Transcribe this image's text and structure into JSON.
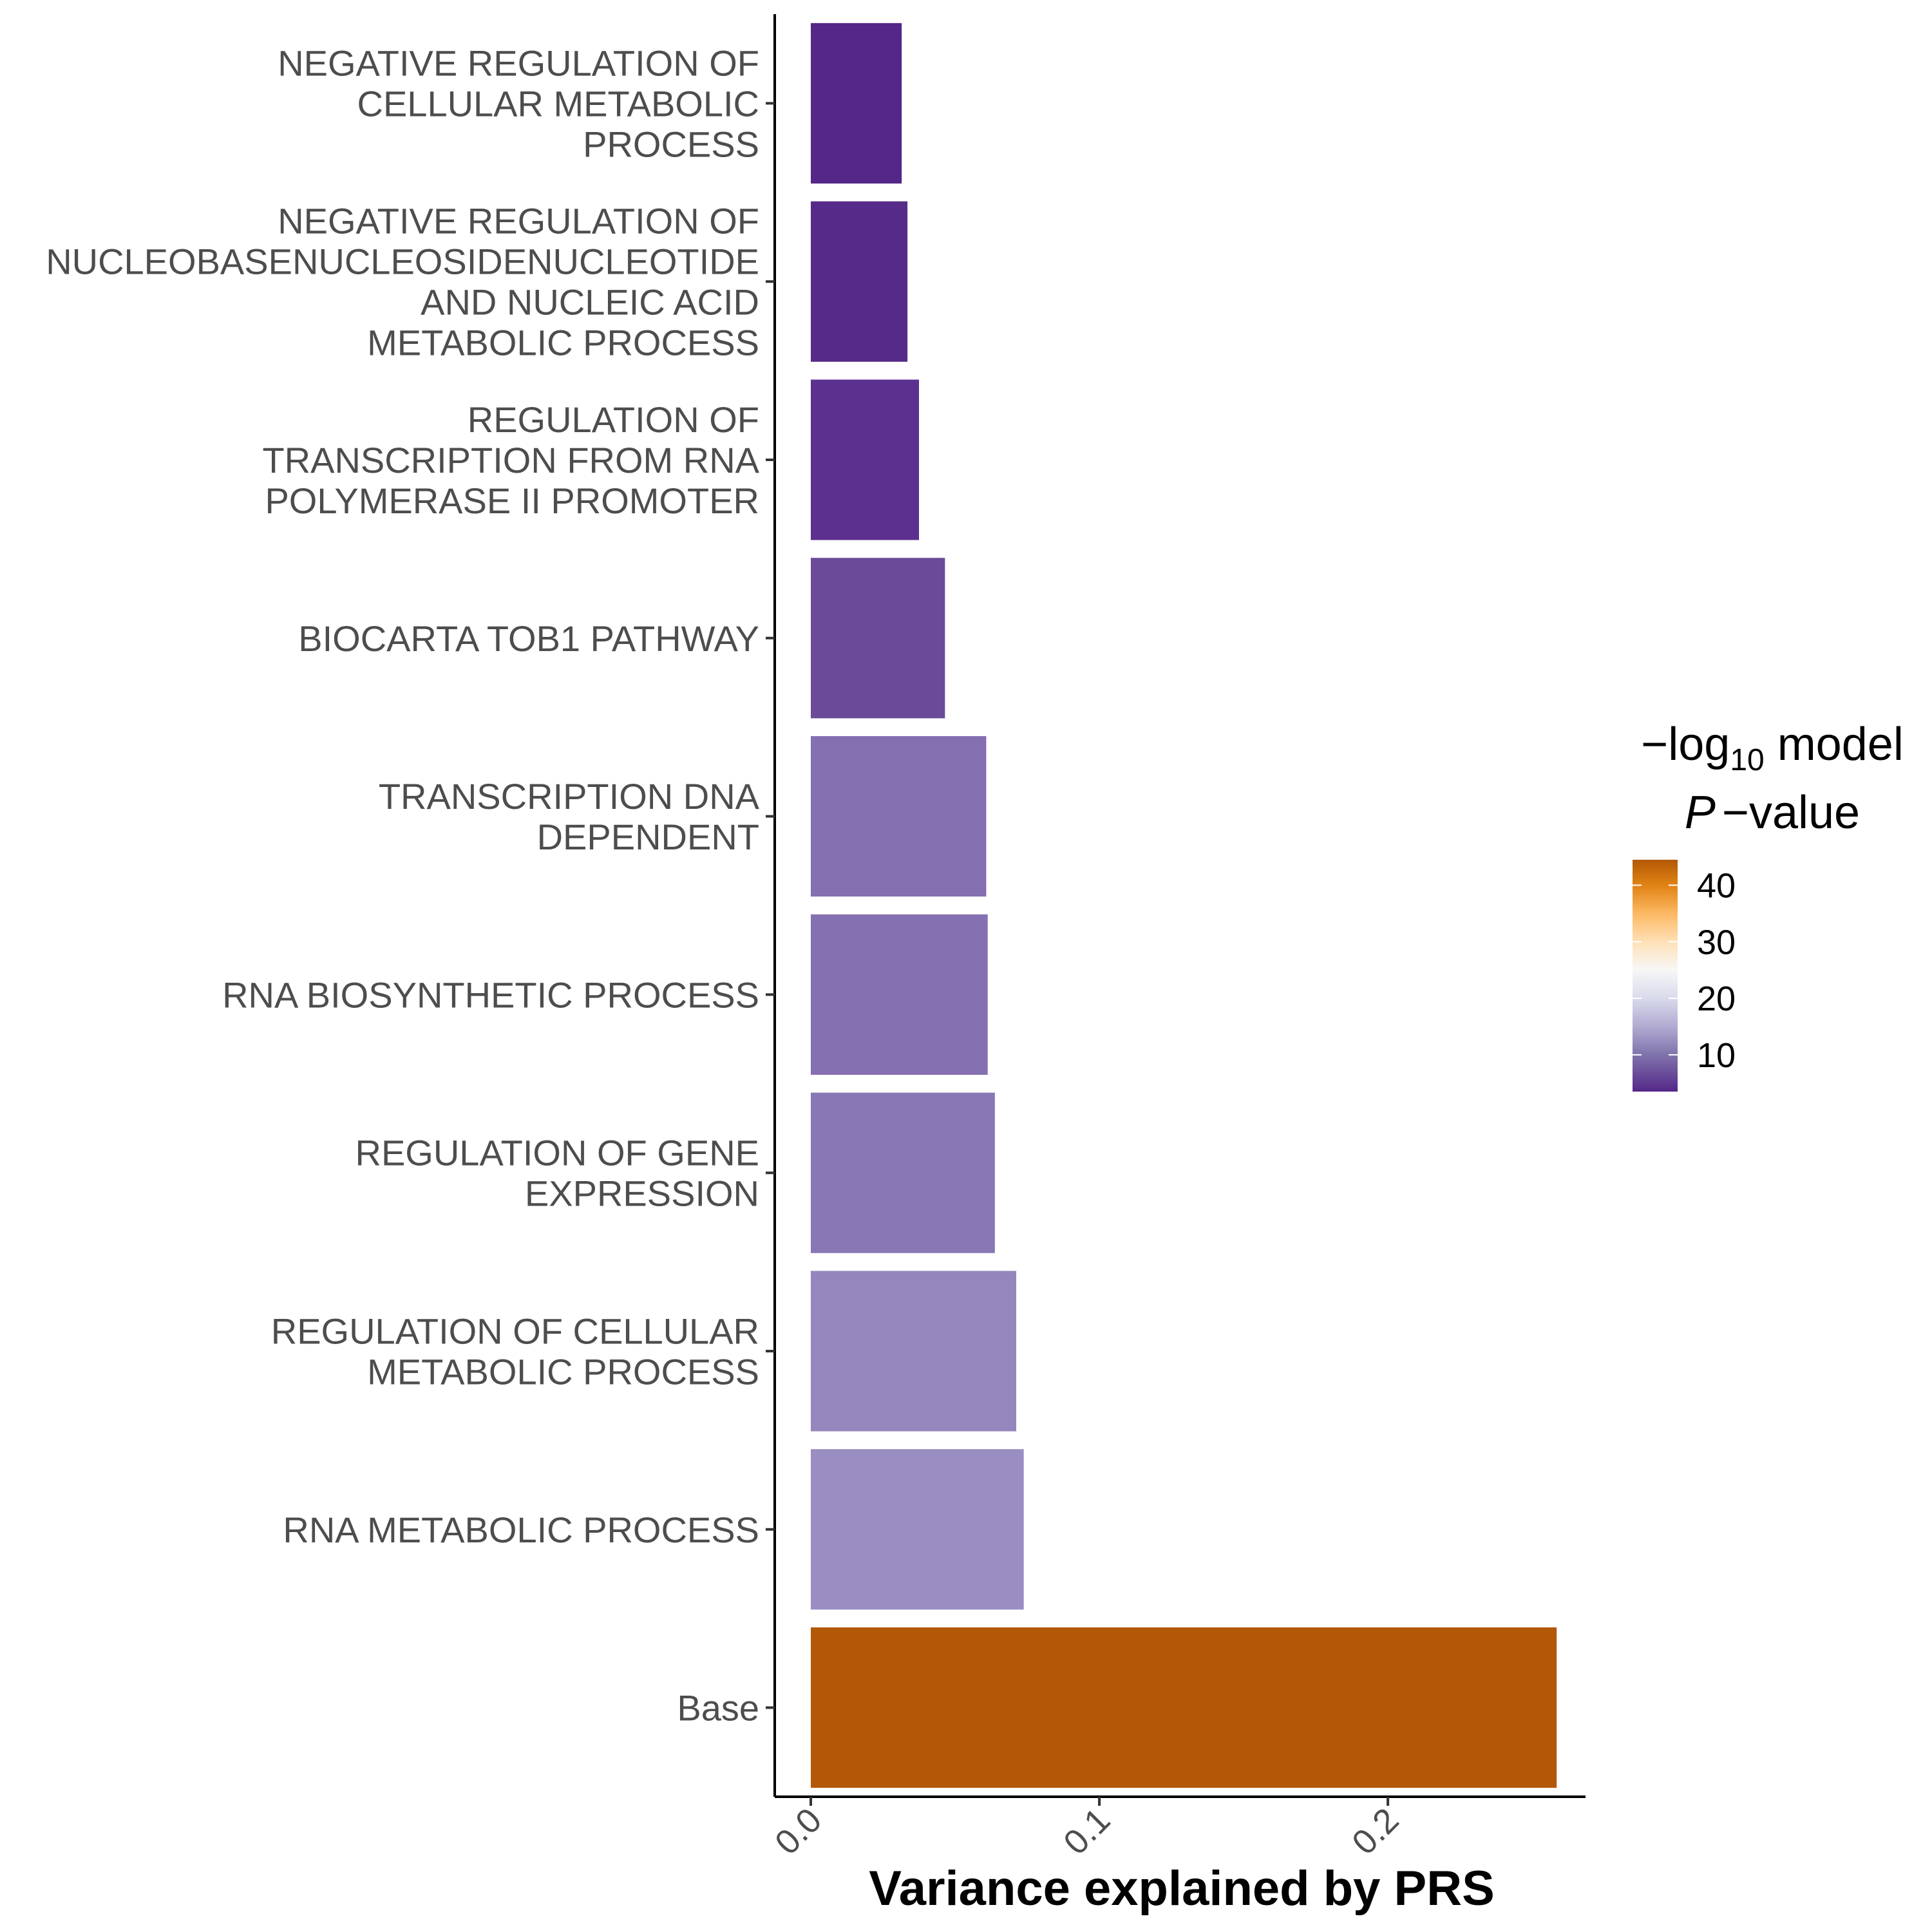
{
  "chart_data": {
    "type": "bar",
    "orientation": "horizontal",
    "title": "",
    "xlabel": "Variance explained by PRS",
    "ylabel": "",
    "xlim": [
      -0.0125,
      0.2685
    ],
    "x_ticks": [
      0.0,
      0.1,
      0.2
    ],
    "x_tick_labels": [
      "0.0",
      "0.1",
      "0.2"
    ],
    "grid": false,
    "categories": [
      "NEGATIVE REGULATION OF CELLULAR METABOLIC PROCESS",
      "NEGATIVE REGULATION OF NUCLEOBASENUCLEOSIDENUCLEOTIDE AND NUCLEIC ACID METABOLIC PROCESS",
      "REGULATION OF TRANSCRIPTION FROM RNA POLYMERASE II PROMOTER",
      "BIOCARTA TOB1 PATHWAY",
      "TRANSCRIPTION DNA DEPENDENT",
      "RNA BIOSYNTHETIC PROCESS",
      "REGULATION OF GENE EXPRESSION",
      "REGULATION OF CELLULAR METABOLIC PROCESS",
      "RNA METABOLIC PROCESS",
      "Base"
    ],
    "category_label_lines": [
      [
        "NEGATIVE REGULATION OF",
        "CELLULAR METABOLIC",
        "PROCESS"
      ],
      [
        "NEGATIVE REGULATION OF",
        "NUCLEOBASENUCLEOSIDENUCLEOTIDE",
        "AND NUCLEIC ACID",
        "METABOLIC PROCESS"
      ],
      [
        "REGULATION OF",
        "TRANSCRIPTION FROM RNA",
        "POLYMERASE II PROMOTER"
      ],
      [
        "BIOCARTA TOB1 PATHWAY"
      ],
      [
        "TRANSCRIPTION DNA",
        "DEPENDENT"
      ],
      [
        "RNA BIOSYNTHETIC PROCESS"
      ],
      [
        "REGULATION OF GENE",
        "EXPRESSION"
      ],
      [
        "REGULATION OF CELLULAR",
        "METABOLIC PROCESS"
      ],
      [
        "RNA METABOLIC PROCESS"
      ],
      [
        "Base"
      ]
    ],
    "values": [
      0.0315,
      0.0335,
      0.0375,
      0.0465,
      0.0608,
      0.0613,
      0.0638,
      0.0712,
      0.0738,
      0.2585
    ],
    "fill_values": [
      4.0,
      4.5,
      5.5,
      7.5,
      10.5,
      10.8,
      11.0,
      12.8,
      13.6,
      44.0
    ],
    "bar_colors": [
      "#542788",
      "#552a89",
      "#5c308e",
      "#6b4b99",
      "#846fb0",
      "#8570b1",
      "#8977b4",
      "#9487bd",
      "#9a8dc1",
      "#b35806"
    ],
    "legend": {
      "title_lines": [
        "−log",
        "10",
        " model",
        "P",
        "−value"
      ],
      "position": "right",
      "range": [
        3.5,
        44.5
      ],
      "ticks": [
        10,
        20,
        30,
        40
      ],
      "tick_labels": [
        "10",
        "20",
        "30",
        "40"
      ],
      "gradient_stops": [
        {
          "value": 3.5,
          "color": "#542788"
        },
        {
          "value": 10,
          "color": "#8073ac"
        },
        {
          "value": 15,
          "color": "#b2abd2"
        },
        {
          "value": 20,
          "color": "#d8daeb"
        },
        {
          "value": 25,
          "color": "#f7f7f7"
        },
        {
          "value": 30,
          "color": "#fee0b6"
        },
        {
          "value": 35,
          "color": "#fdb863"
        },
        {
          "value": 40,
          "color": "#e08214"
        },
        {
          "value": 44.5,
          "color": "#b35806"
        }
      ]
    }
  }
}
